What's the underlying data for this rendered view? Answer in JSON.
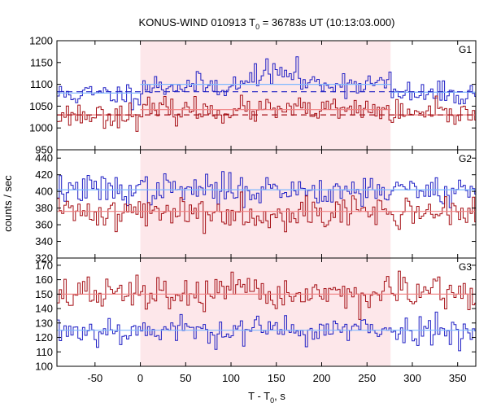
{
  "chart_data": {
    "type": "line",
    "title": "KONUS-WIND 010913 T",
    "title_sub": "0",
    "title_rest": " = 36783s UT (10:13:03.000)",
    "xlabel": "T - T",
    "xlabel_sub": "0",
    "xlabel_rest": ", s",
    "ylabel": "counts / sec",
    "xlim": [
      -92,
      370
    ],
    "x_ticks": [
      -50,
      0,
      50,
      100,
      150,
      200,
      250,
      300,
      350
    ],
    "x_tick_labels": [
      "-50",
      "0",
      "50",
      "100",
      "150",
      "200",
      "250",
      "300",
      "350"
    ],
    "shaded_interval": [
      0,
      276
    ],
    "colors": {
      "blue": "#1f1fc4",
      "red": "#a50f15",
      "fit_blue": "#7fb8ff",
      "fit_red": "#f08080",
      "shade": "#fde7ea"
    },
    "panels": [
      {
        "label": "G1",
        "ylim": [
          950,
          1200
        ],
        "y_ticks": [
          950,
          1000,
          1050,
          1100,
          1150,
          1200
        ],
        "y_tick_labels": [
          "950",
          "1000",
          "1050",
          "1100",
          "1150",
          "1200"
        ],
        "series": [
          {
            "color": "blue",
            "base": 1077,
            "noise": 14,
            "bumps": [
              [
                0,
                120,
                20
              ],
              [
                120,
                175,
                48
              ],
              [
                175,
                276,
                25
              ]
            ],
            "seed": 11
          },
          {
            "color": "red",
            "base": 1030,
            "noise": 14,
            "bumps": [
              [
                0,
                276,
                10
              ]
            ],
            "seed": 23
          }
        ],
        "fits": [
          {
            "color": "fit_blue",
            "segments": [
              [
                -92,
                0,
                1080
              ],
              [
                0,
                276,
                1100
              ],
              [
                276,
                370,
                1082
              ]
            ]
          },
          {
            "color": "fit_red",
            "segments": [
              [
                -92,
                0,
                1030
              ],
              [
                0,
                276,
                1042
              ],
              [
                276,
                370,
                1030
              ]
            ]
          }
        ],
        "backgrounds": [
          {
            "color": "blue",
            "x": [
              -92,
              370
            ],
            "y": 1083
          },
          {
            "color": "red",
            "x": [
              -92,
              370
            ],
            "y": 1030
          }
        ]
      },
      {
        "label": "G2",
        "ylim": [
          320,
          450
        ],
        "y_ticks": [
          320,
          340,
          360,
          380,
          400,
          420,
          440
        ],
        "y_tick_labels": [
          "320",
          "340",
          "360",
          "380",
          "400",
          "420",
          "440"
        ],
        "series": [
          {
            "color": "blue",
            "base": 402,
            "noise": 9,
            "bumps": [],
            "seed": 37
          },
          {
            "color": "red",
            "base": 375,
            "noise": 10,
            "bumps": [],
            "seed": 41
          }
        ],
        "fits": [
          {
            "color": "fit_blue",
            "segments": [
              [
                -92,
                370,
                402
              ]
            ]
          },
          {
            "color": "fit_red",
            "segments": [
              [
                -92,
                370,
                376
              ]
            ]
          }
        ],
        "backgrounds": []
      },
      {
        "label": "G3",
        "ylim": [
          100,
          175
        ],
        "y_ticks": [
          100,
          110,
          120,
          130,
          140,
          150,
          160,
          170
        ],
        "y_tick_labels": [
          "100",
          "110",
          "120",
          "130",
          "140",
          "150",
          "160",
          "170"
        ],
        "series": [
          {
            "color": "blue",
            "base": 125,
            "noise": 5,
            "bumps": [],
            "seed": 53
          },
          {
            "color": "red",
            "base": 150,
            "noise": 6,
            "bumps": [],
            "seed": 67
          }
        ],
        "fits": [
          {
            "color": "fit_blue",
            "segments": [
              [
                -92,
                370,
                125
              ]
            ]
          },
          {
            "color": "fit_red",
            "segments": [
              [
                -92,
                370,
                150
              ]
            ]
          }
        ],
        "backgrounds": []
      }
    ]
  }
}
